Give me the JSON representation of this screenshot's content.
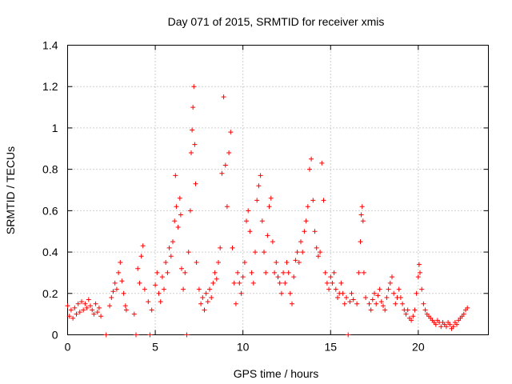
{
  "chart_data": {
    "type": "scatter",
    "title": "Day 071 of 2015, SRMTID for receiver xmis",
    "xlabel": "GPS time / hours",
    "ylabel": "SRMTID / TECUs",
    "xlim": [
      0,
      24
    ],
    "ylim": [
      0,
      1.4
    ],
    "xticks": [
      "0",
      "5",
      "10",
      "15",
      "20"
    ],
    "xtick_values": [
      0,
      5,
      10,
      15,
      20
    ],
    "yticks": [
      "0",
      "0.2",
      "0.4",
      "0.6",
      "0.8",
      "1",
      "1.2",
      "1.4"
    ],
    "ytick_values": [
      0,
      0.2,
      0.4,
      0.6,
      0.8,
      1.0,
      1.2,
      1.4
    ],
    "grid": true,
    "marker": "+",
    "color": "#ff0000",
    "series": [
      {
        "name": "SRMTID",
        "points": [
          [
            0.0,
            0.14
          ],
          [
            0.1,
            0.09
          ],
          [
            0.2,
            0.12
          ],
          [
            0.3,
            0.08
          ],
          [
            0.4,
            0.13
          ],
          [
            0.5,
            0.1
          ],
          [
            0.6,
            0.15
          ],
          [
            0.7,
            0.11
          ],
          [
            0.8,
            0.16
          ],
          [
            0.9,
            0.12
          ],
          [
            1.0,
            0.15
          ],
          [
            1.1,
            0.13
          ],
          [
            1.2,
            0.17
          ],
          [
            1.3,
            0.14
          ],
          [
            1.4,
            0.12
          ],
          [
            1.5,
            0.1
          ],
          [
            1.6,
            0.15
          ],
          [
            1.7,
            0.11
          ],
          [
            1.8,
            0.13
          ],
          [
            1.9,
            0.09
          ],
          [
            2.2,
            0.0
          ],
          [
            2.4,
            0.14
          ],
          [
            2.5,
            0.18
          ],
          [
            2.6,
            0.21
          ],
          [
            2.7,
            0.25
          ],
          [
            2.8,
            0.22
          ],
          [
            2.9,
            0.3
          ],
          [
            3.0,
            0.35
          ],
          [
            3.1,
            0.26
          ],
          [
            3.2,
            0.2
          ],
          [
            3.3,
            0.14
          ],
          [
            3.35,
            0.12
          ],
          [
            3.8,
            0.1
          ],
          [
            3.9,
            0.0
          ],
          [
            4.0,
            0.32
          ],
          [
            4.1,
            0.25
          ],
          [
            4.2,
            0.38
          ],
          [
            4.3,
            0.43
          ],
          [
            4.4,
            0.22
          ],
          [
            4.6,
            0.16
          ],
          [
            4.7,
            0.0
          ],
          [
            4.8,
            0.12
          ],
          [
            5.0,
            0.24
          ],
          [
            5.1,
            0.3
          ],
          [
            5.2,
            0.2
          ],
          [
            5.3,
            0.16
          ],
          [
            5.4,
            0.28
          ],
          [
            5.5,
            0.22
          ],
          [
            5.6,
            0.35
          ],
          [
            5.7,
            0.3
          ],
          [
            5.8,
            0.42
          ],
          [
            5.9,
            0.38
          ],
          [
            6.0,
            0.45
          ],
          [
            6.1,
            0.55
          ],
          [
            6.15,
            0.77
          ],
          [
            6.2,
            0.62
          ],
          [
            6.3,
            0.52
          ],
          [
            6.4,
            0.66
          ],
          [
            6.45,
            0.58
          ],
          [
            6.5,
            0.32
          ],
          [
            6.6,
            0.22
          ],
          [
            6.7,
            0.3
          ],
          [
            6.8,
            0.0
          ],
          [
            6.9,
            0.4
          ],
          [
            7.0,
            0.6
          ],
          [
            7.05,
            0.88
          ],
          [
            7.1,
            0.99
          ],
          [
            7.15,
            1.1
          ],
          [
            7.2,
            1.2
          ],
          [
            7.25,
            0.92
          ],
          [
            7.3,
            0.73
          ],
          [
            7.35,
            0.35
          ],
          [
            7.5,
            0.22
          ],
          [
            7.6,
            0.15
          ],
          [
            7.7,
            0.18
          ],
          [
            7.8,
            0.12
          ],
          [
            7.9,
            0.2
          ],
          [
            8.0,
            0.16
          ],
          [
            8.1,
            0.22
          ],
          [
            8.2,
            0.18
          ],
          [
            8.3,
            0.25
          ],
          [
            8.4,
            0.3
          ],
          [
            8.5,
            0.27
          ],
          [
            8.6,
            0.35
          ],
          [
            8.7,
            0.42
          ],
          [
            8.8,
            0.78
          ],
          [
            8.9,
            1.15
          ],
          [
            9.0,
            0.82
          ],
          [
            9.1,
            0.62
          ],
          [
            9.2,
            0.88
          ],
          [
            9.3,
            0.98
          ],
          [
            9.4,
            0.42
          ],
          [
            9.5,
            0.25
          ],
          [
            9.6,
            0.15
          ],
          [
            9.7,
            0.3
          ],
          [
            9.8,
            0.25
          ],
          [
            9.9,
            0.2
          ],
          [
            10.0,
            0.28
          ],
          [
            10.1,
            0.35
          ],
          [
            10.2,
            0.55
          ],
          [
            10.3,
            0.6
          ],
          [
            10.4,
            0.5
          ],
          [
            10.5,
            0.3
          ],
          [
            10.6,
            0.25
          ],
          [
            10.7,
            0.4
          ],
          [
            10.8,
            0.65
          ],
          [
            10.9,
            0.72
          ],
          [
            11.0,
            0.77
          ],
          [
            11.1,
            0.55
          ],
          [
            11.2,
            0.4
          ],
          [
            11.3,
            0.3
          ],
          [
            11.4,
            0.48
          ],
          [
            11.5,
            0.62
          ],
          [
            11.6,
            0.66
          ],
          [
            11.7,
            0.45
          ],
          [
            11.8,
            0.3
          ],
          [
            11.9,
            0.35
          ],
          [
            12.0,
            0.28
          ],
          [
            12.1,
            0.25
          ],
          [
            12.2,
            0.2
          ],
          [
            12.3,
            0.3
          ],
          [
            12.4,
            0.25
          ],
          [
            12.5,
            0.35
          ],
          [
            12.6,
            0.3
          ],
          [
            12.7,
            0.2
          ],
          [
            12.8,
            0.15
          ],
          [
            12.9,
            0.28
          ],
          [
            13.0,
            0.36
          ],
          [
            13.1,
            0.4
          ],
          [
            13.2,
            0.35
          ],
          [
            13.3,
            0.45
          ],
          [
            13.4,
            0.4
          ],
          [
            13.5,
            0.5
          ],
          [
            13.6,
            0.55
          ],
          [
            13.7,
            0.62
          ],
          [
            13.8,
            0.8
          ],
          [
            13.9,
            0.85
          ],
          [
            14.0,
            0.65
          ],
          [
            14.1,
            0.5
          ],
          [
            14.2,
            0.42
          ],
          [
            14.3,
            0.38
          ],
          [
            14.4,
            0.4
          ],
          [
            14.5,
            0.83
          ],
          [
            14.6,
            0.65
          ],
          [
            14.7,
            0.3
          ],
          [
            14.8,
            0.25
          ],
          [
            14.9,
            0.22
          ],
          [
            15.0,
            0.28
          ],
          [
            15.1,
            0.25
          ],
          [
            15.2,
            0.3
          ],
          [
            15.3,
            0.22
          ],
          [
            15.4,
            0.18
          ],
          [
            15.5,
            0.2
          ],
          [
            15.6,
            0.25
          ],
          [
            15.7,
            0.2
          ],
          [
            15.8,
            0.15
          ],
          [
            15.9,
            0.18
          ],
          [
            16.0,
            0.0
          ],
          [
            16.1,
            0.16
          ],
          [
            16.2,
            0.2
          ],
          [
            16.3,
            0.17
          ],
          [
            16.5,
            0.15
          ],
          [
            16.6,
            0.3
          ],
          [
            16.7,
            0.45
          ],
          [
            16.75,
            0.58
          ],
          [
            16.8,
            0.62
          ],
          [
            16.85,
            0.55
          ],
          [
            16.9,
            0.3
          ],
          [
            17.0,
            0.18
          ],
          [
            17.2,
            0.15
          ],
          [
            17.3,
            0.12
          ],
          [
            17.4,
            0.17
          ],
          [
            17.5,
            0.2
          ],
          [
            17.6,
            0.15
          ],
          [
            17.7,
            0.19
          ],
          [
            17.8,
            0.22
          ],
          [
            17.9,
            0.16
          ],
          [
            18.0,
            0.14
          ],
          [
            18.1,
            0.12
          ],
          [
            18.2,
            0.18
          ],
          [
            18.3,
            0.22
          ],
          [
            18.4,
            0.25
          ],
          [
            18.5,
            0.28
          ],
          [
            18.6,
            0.2
          ],
          [
            18.7,
            0.15
          ],
          [
            18.8,
            0.18
          ],
          [
            18.9,
            0.22
          ],
          [
            19.0,
            0.18
          ],
          [
            19.1,
            0.15
          ],
          [
            19.2,
            0.12
          ],
          [
            19.3,
            0.1
          ],
          [
            19.4,
            0.12
          ],
          [
            19.5,
            0.08
          ],
          [
            19.6,
            0.07
          ],
          [
            19.7,
            0.09
          ],
          [
            19.8,
            0.12
          ],
          [
            19.9,
            0.2
          ],
          [
            20.0,
            0.28
          ],
          [
            20.05,
            0.34
          ],
          [
            20.1,
            0.3
          ],
          [
            20.2,
            0.22
          ],
          [
            20.3,
            0.15
          ],
          [
            20.4,
            0.12
          ],
          [
            20.5,
            0.1
          ],
          [
            20.6,
            0.09
          ],
          [
            20.7,
            0.08
          ],
          [
            20.8,
            0.07
          ],
          [
            20.9,
            0.06
          ],
          [
            21.0,
            0.05
          ],
          [
            21.1,
            0.07
          ],
          [
            21.2,
            0.06
          ],
          [
            21.3,
            0.04
          ],
          [
            21.4,
            0.06
          ],
          [
            21.5,
            0.05
          ],
          [
            21.6,
            0.04
          ],
          [
            21.7,
            0.06
          ],
          [
            21.8,
            0.05
          ],
          [
            21.9,
            0.03
          ],
          [
            22.0,
            0.04
          ],
          [
            22.1,
            0.06
          ],
          [
            22.2,
            0.05
          ],
          [
            22.3,
            0.07
          ],
          [
            22.4,
            0.08
          ],
          [
            22.5,
            0.09
          ],
          [
            22.6,
            0.1
          ],
          [
            22.7,
            0.12
          ],
          [
            22.8,
            0.13
          ]
        ]
      }
    ]
  }
}
